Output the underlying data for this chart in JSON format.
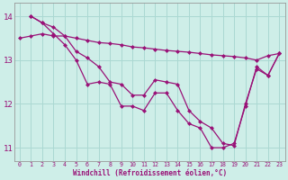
{
  "xlabel": "Windchill (Refroidissement éolien,°C)",
  "background_color": "#ceeee8",
  "grid_color": "#aad8d2",
  "line_color": "#991177",
  "spine_color": "#999999",
  "xlim": [
    -0.5,
    23.5
  ],
  "ylim": [
    10.7,
    14.3
  ],
  "yticks": [
    11,
    12,
    13,
    14
  ],
  "xticks": [
    0,
    1,
    2,
    3,
    4,
    5,
    6,
    7,
    8,
    9,
    10,
    11,
    12,
    13,
    14,
    15,
    16,
    17,
    18,
    19,
    20,
    21,
    22,
    23
  ],
  "series1_x": [
    0,
    1,
    2,
    3,
    4,
    5,
    6,
    7,
    8,
    9,
    10,
    11,
    12,
    13,
    14,
    15,
    16,
    17,
    18,
    19,
    20,
    21,
    22,
    23
  ],
  "series1_y": [
    13.5,
    13.55,
    13.6,
    13.55,
    13.55,
    13.5,
    13.45,
    13.4,
    13.38,
    13.35,
    13.3,
    13.28,
    13.25,
    13.22,
    13.2,
    13.18,
    13.15,
    13.12,
    13.1,
    13.08,
    13.05,
    13.0,
    13.1,
    13.15
  ],
  "series2_x": [
    1,
    2,
    3,
    4,
    5,
    6,
    7,
    8,
    9,
    10,
    11,
    12,
    13,
    14,
    15,
    16,
    17,
    18,
    19,
    20,
    21,
    22,
    23
  ],
  "series2_y": [
    14.0,
    13.85,
    13.75,
    13.55,
    13.2,
    13.05,
    12.85,
    12.5,
    12.45,
    12.2,
    12.2,
    12.55,
    12.5,
    12.45,
    11.85,
    11.6,
    11.45,
    11.1,
    11.05,
    12.0,
    12.8,
    12.65,
    13.15
  ],
  "series3_x": [
    1,
    2,
    3,
    4,
    5,
    6,
    7,
    8,
    9,
    10,
    11,
    12,
    13,
    14,
    15,
    16,
    17,
    18,
    19,
    20,
    21,
    22,
    23
  ],
  "series3_y": [
    14.0,
    13.85,
    13.6,
    13.35,
    13.0,
    12.45,
    12.5,
    12.45,
    11.95,
    11.95,
    11.85,
    12.25,
    12.25,
    11.85,
    11.55,
    11.45,
    11.0,
    11.0,
    11.1,
    11.95,
    12.85,
    12.65,
    13.15
  ],
  "marker": "D",
  "markersize": 2.5,
  "linewidth": 0.9
}
